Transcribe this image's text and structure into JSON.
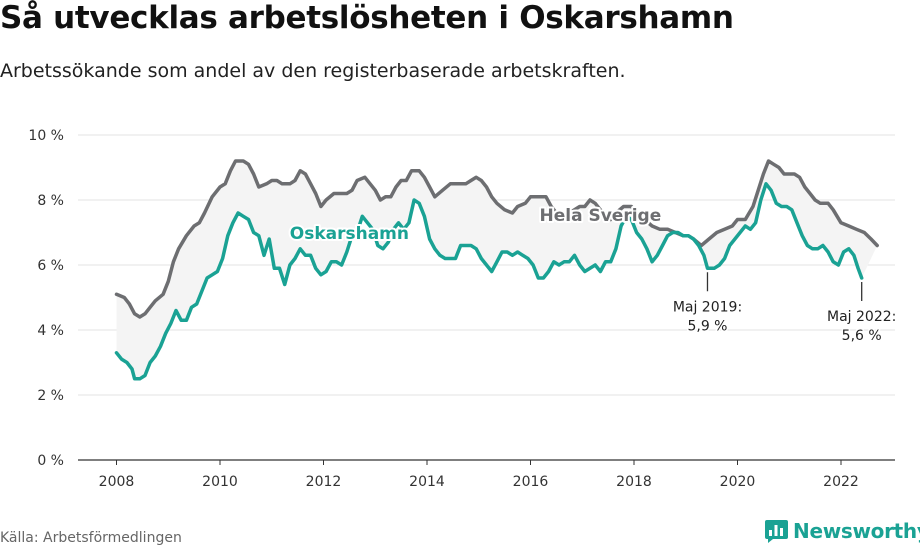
{
  "title": "Så utvecklas arbetslösheten i Oskarshamn",
  "subtitle": "Arbetssökande som andel av den registerbaserade arbetskraften.",
  "source": "Källa: Arbetsförmedlingen",
  "brand": {
    "name": "Newsworthy",
    "icon": "newsworthy-chart-logo-icon",
    "color": "#1aa294"
  },
  "colors": {
    "oskarshamn": "#1aa294",
    "sverige": "#6d6e71",
    "band": "#f4f4f4",
    "grid": "#e3e3e3",
    "axis": "#333333"
  },
  "chart_data": {
    "type": "line",
    "title": "Så utvecklas arbetslösheten i Oskarshamn",
    "subtitle": "Arbetssökande som andel av den registerbaserade arbetskraften.",
    "xlabel": "",
    "ylabel": "",
    "xlim": [
      2007.5,
      2023.0
    ],
    "ylim": [
      0,
      10
    ],
    "y_ticks": [
      0,
      2,
      4,
      6,
      8,
      10
    ],
    "y_tick_labels": [
      "0 %",
      "2 %",
      "4 %",
      "6 %",
      "8 %",
      "10 %"
    ],
    "x_ticks": [
      2008,
      2010,
      2012,
      2014,
      2016,
      2018,
      2020,
      2022
    ],
    "x_tick_labels": [
      "2008",
      "2010",
      "2012",
      "2014",
      "2016",
      "2018",
      "2020",
      "2022"
    ],
    "grid": "horizontal",
    "legend": "inline labels",
    "series": [
      {
        "name": "Hela Sverige",
        "points": [
          [
            2008.0,
            5.1
          ],
          [
            2008.15,
            5.0
          ],
          [
            2008.25,
            4.8
          ],
          [
            2008.35,
            4.5
          ],
          [
            2008.45,
            4.4
          ],
          [
            2008.55,
            4.5
          ],
          [
            2008.65,
            4.7
          ],
          [
            2008.75,
            4.9
          ],
          [
            2008.9,
            5.1
          ],
          [
            2009.0,
            5.5
          ],
          [
            2009.1,
            6.1
          ],
          [
            2009.2,
            6.5
          ],
          [
            2009.35,
            6.9
          ],
          [
            2009.5,
            7.2
          ],
          [
            2009.6,
            7.3
          ],
          [
            2009.7,
            7.6
          ],
          [
            2009.85,
            8.1
          ],
          [
            2010.0,
            8.4
          ],
          [
            2010.1,
            8.5
          ],
          [
            2010.2,
            8.9
          ],
          [
            2010.3,
            9.2
          ],
          [
            2010.45,
            9.2
          ],
          [
            2010.55,
            9.1
          ],
          [
            2010.65,
            8.8
          ],
          [
            2010.75,
            8.4
          ],
          [
            2010.9,
            8.5
          ],
          [
            2011.0,
            8.6
          ],
          [
            2011.1,
            8.6
          ],
          [
            2011.2,
            8.5
          ],
          [
            2011.35,
            8.5
          ],
          [
            2011.45,
            8.6
          ],
          [
            2011.55,
            8.9
          ],
          [
            2011.65,
            8.8
          ],
          [
            2011.75,
            8.5
          ],
          [
            2011.85,
            8.2
          ],
          [
            2011.95,
            7.8
          ],
          [
            2012.05,
            8.0
          ],
          [
            2012.2,
            8.2
          ],
          [
            2012.35,
            8.2
          ],
          [
            2012.45,
            8.2
          ],
          [
            2012.55,
            8.3
          ],
          [
            2012.65,
            8.6
          ],
          [
            2012.8,
            8.7
          ],
          [
            2012.9,
            8.5
          ],
          [
            2013.0,
            8.3
          ],
          [
            2013.1,
            8.0
          ],
          [
            2013.2,
            8.1
          ],
          [
            2013.3,
            8.1
          ],
          [
            2013.4,
            8.4
          ],
          [
            2013.5,
            8.6
          ],
          [
            2013.6,
            8.6
          ],
          [
            2013.7,
            8.9
          ],
          [
            2013.85,
            8.9
          ],
          [
            2013.95,
            8.7
          ],
          [
            2014.05,
            8.4
          ],
          [
            2014.15,
            8.1
          ],
          [
            2014.3,
            8.3
          ],
          [
            2014.45,
            8.5
          ],
          [
            2014.6,
            8.5
          ],
          [
            2014.75,
            8.5
          ],
          [
            2014.85,
            8.6
          ],
          [
            2014.95,
            8.7
          ],
          [
            2015.05,
            8.6
          ],
          [
            2015.15,
            8.4
          ],
          [
            2015.25,
            8.1
          ],
          [
            2015.35,
            7.9
          ],
          [
            2015.5,
            7.7
          ],
          [
            2015.65,
            7.6
          ],
          [
            2015.75,
            7.8
          ],
          [
            2015.9,
            7.9
          ],
          [
            2016.0,
            8.1
          ],
          [
            2016.15,
            8.1
          ],
          [
            2016.3,
            8.1
          ],
          [
            2016.4,
            7.8
          ],
          [
            2016.5,
            7.6
          ],
          [
            2016.6,
            7.5
          ],
          [
            2016.75,
            7.6
          ],
          [
            2016.85,
            7.7
          ],
          [
            2016.95,
            7.8
          ],
          [
            2017.05,
            7.8
          ],
          [
            2017.15,
            8.0
          ],
          [
            2017.25,
            7.9
          ],
          [
            2017.35,
            7.7
          ],
          [
            2017.45,
            7.5
          ],
          [
            2017.55,
            7.4
          ],
          [
            2017.65,
            7.6
          ],
          [
            2017.8,
            7.8
          ],
          [
            2017.95,
            7.8
          ],
          [
            2018.05,
            7.6
          ],
          [
            2018.2,
            7.4
          ],
          [
            2018.35,
            7.2
          ],
          [
            2018.5,
            7.1
          ],
          [
            2018.65,
            7.1
          ],
          [
            2018.8,
            7.0
          ],
          [
            2018.95,
            6.9
          ],
          [
            2019.05,
            6.9
          ],
          [
            2019.15,
            6.8
          ],
          [
            2019.3,
            6.6
          ],
          [
            2019.45,
            6.8
          ],
          [
            2019.6,
            7.0
          ],
          [
            2019.75,
            7.1
          ],
          [
            2019.9,
            7.2
          ],
          [
            2020.0,
            7.4
          ],
          [
            2020.15,
            7.4
          ],
          [
            2020.3,
            7.8
          ],
          [
            2020.4,
            8.3
          ],
          [
            2020.5,
            8.8
          ],
          [
            2020.6,
            9.2
          ],
          [
            2020.7,
            9.1
          ],
          [
            2020.8,
            9.0
          ],
          [
            2020.9,
            8.8
          ],
          [
            2021.0,
            8.8
          ],
          [
            2021.1,
            8.8
          ],
          [
            2021.2,
            8.7
          ],
          [
            2021.3,
            8.4
          ],
          [
            2021.4,
            8.2
          ],
          [
            2021.5,
            8.0
          ],
          [
            2021.6,
            7.9
          ],
          [
            2021.75,
            7.9
          ],
          [
            2021.85,
            7.7
          ],
          [
            2022.0,
            7.3
          ],
          [
            2022.15,
            7.2
          ],
          [
            2022.3,
            7.1
          ],
          [
            2022.45,
            7.0
          ],
          [
            2022.58,
            6.8
          ],
          [
            2022.7,
            6.6
          ]
        ]
      },
      {
        "name": "Oskarshamn",
        "points": [
          [
            2008.0,
            3.3
          ],
          [
            2008.1,
            3.1
          ],
          [
            2008.2,
            3.0
          ],
          [
            2008.3,
            2.8
          ],
          [
            2008.35,
            2.5
          ],
          [
            2008.45,
            2.5
          ],
          [
            2008.55,
            2.6
          ],
          [
            2008.65,
            3.0
          ],
          [
            2008.75,
            3.2
          ],
          [
            2008.85,
            3.5
          ],
          [
            2008.95,
            3.9
          ],
          [
            2009.05,
            4.2
          ],
          [
            2009.15,
            4.6
          ],
          [
            2009.25,
            4.3
          ],
          [
            2009.35,
            4.3
          ],
          [
            2009.45,
            4.7
          ],
          [
            2009.55,
            4.8
          ],
          [
            2009.65,
            5.2
          ],
          [
            2009.75,
            5.6
          ],
          [
            2009.85,
            5.7
          ],
          [
            2009.95,
            5.8
          ],
          [
            2010.05,
            6.2
          ],
          [
            2010.15,
            6.9
          ],
          [
            2010.25,
            7.3
          ],
          [
            2010.35,
            7.6
          ],
          [
            2010.45,
            7.5
          ],
          [
            2010.55,
            7.4
          ],
          [
            2010.65,
            7.0
          ],
          [
            2010.75,
            6.9
          ],
          [
            2010.85,
            6.3
          ],
          [
            2010.95,
            6.8
          ],
          [
            2011.05,
            5.9
          ],
          [
            2011.15,
            5.9
          ],
          [
            2011.25,
            5.4
          ],
          [
            2011.35,
            6.0
          ],
          [
            2011.45,
            6.2
          ],
          [
            2011.55,
            6.5
          ],
          [
            2011.65,
            6.3
          ],
          [
            2011.75,
            6.3
          ],
          [
            2011.85,
            5.9
          ],
          [
            2011.95,
            5.7
          ],
          [
            2012.05,
            5.8
          ],
          [
            2012.15,
            6.1
          ],
          [
            2012.25,
            6.1
          ],
          [
            2012.35,
            6.0
          ],
          [
            2012.45,
            6.4
          ],
          [
            2012.55,
            6.9
          ],
          [
            2012.65,
            7.0
          ],
          [
            2012.75,
            7.5
          ],
          [
            2012.85,
            7.3
          ],
          [
            2012.95,
            7.1
          ],
          [
            2013.05,
            6.6
          ],
          [
            2013.15,
            6.5
          ],
          [
            2013.25,
            6.7
          ],
          [
            2013.35,
            7.1
          ],
          [
            2013.45,
            7.3
          ],
          [
            2013.55,
            7.1
          ],
          [
            2013.65,
            7.3
          ],
          [
            2013.75,
            8.0
          ],
          [
            2013.85,
            7.9
          ],
          [
            2013.95,
            7.5
          ],
          [
            2014.05,
            6.8
          ],
          [
            2014.15,
            6.5
          ],
          [
            2014.25,
            6.3
          ],
          [
            2014.35,
            6.2
          ],
          [
            2014.45,
            6.2
          ],
          [
            2014.55,
            6.2
          ],
          [
            2014.65,
            6.6
          ],
          [
            2014.75,
            6.6
          ],
          [
            2014.85,
            6.6
          ],
          [
            2014.95,
            6.5
          ],
          [
            2015.05,
            6.2
          ],
          [
            2015.15,
            6.0
          ],
          [
            2015.25,
            5.8
          ],
          [
            2015.35,
            6.1
          ],
          [
            2015.45,
            6.4
          ],
          [
            2015.55,
            6.4
          ],
          [
            2015.65,
            6.3
          ],
          [
            2015.75,
            6.4
          ],
          [
            2015.85,
            6.3
          ],
          [
            2015.95,
            6.2
          ],
          [
            2016.05,
            6.0
          ],
          [
            2016.15,
            5.6
          ],
          [
            2016.25,
            5.6
          ],
          [
            2016.35,
            5.8
          ],
          [
            2016.45,
            6.1
          ],
          [
            2016.55,
            6.0
          ],
          [
            2016.65,
            6.1
          ],
          [
            2016.75,
            6.1
          ],
          [
            2016.85,
            6.3
          ],
          [
            2016.95,
            6.0
          ],
          [
            2017.05,
            5.8
          ],
          [
            2017.15,
            5.9
          ],
          [
            2017.25,
            6.0
          ],
          [
            2017.35,
            5.8
          ],
          [
            2017.45,
            6.1
          ],
          [
            2017.55,
            6.1
          ],
          [
            2017.65,
            6.5
          ],
          [
            2017.75,
            7.2
          ],
          [
            2017.85,
            7.5
          ],
          [
            2017.95,
            7.4
          ],
          [
            2018.05,
            7.0
          ],
          [
            2018.15,
            6.8
          ],
          [
            2018.25,
            6.5
          ],
          [
            2018.35,
            6.1
          ],
          [
            2018.45,
            6.3
          ],
          [
            2018.55,
            6.6
          ],
          [
            2018.65,
            6.9
          ],
          [
            2018.75,
            7.0
          ],
          [
            2018.85,
            7.0
          ],
          [
            2018.95,
            6.9
          ],
          [
            2019.05,
            6.9
          ],
          [
            2019.15,
            6.8
          ],
          [
            2019.25,
            6.6
          ],
          [
            2019.35,
            6.3
          ],
          [
            2019.42,
            5.9
          ],
          [
            2019.55,
            5.9
          ],
          [
            2019.65,
            6.0
          ],
          [
            2019.75,
            6.2
          ],
          [
            2019.85,
            6.6
          ],
          [
            2019.95,
            6.8
          ],
          [
            2020.05,
            7.0
          ],
          [
            2020.15,
            7.2
          ],
          [
            2020.25,
            7.1
          ],
          [
            2020.35,
            7.3
          ],
          [
            2020.45,
            8.0
          ],
          [
            2020.55,
            8.5
          ],
          [
            2020.65,
            8.3
          ],
          [
            2020.75,
            7.9
          ],
          [
            2020.85,
            7.8
          ],
          [
            2020.95,
            7.8
          ],
          [
            2021.05,
            7.7
          ],
          [
            2021.15,
            7.3
          ],
          [
            2021.25,
            6.9
          ],
          [
            2021.35,
            6.6
          ],
          [
            2021.45,
            6.5
          ],
          [
            2021.55,
            6.5
          ],
          [
            2021.65,
            6.6
          ],
          [
            2021.75,
            6.4
          ],
          [
            2021.85,
            6.1
          ],
          [
            2021.95,
            6.0
          ],
          [
            2022.05,
            6.4
          ],
          [
            2022.15,
            6.5
          ],
          [
            2022.25,
            6.3
          ],
          [
            2022.33,
            5.9
          ],
          [
            2022.4,
            5.6
          ]
        ]
      }
    ],
    "annotations": [
      {
        "x": 2019.42,
        "y": 5.9,
        "line1": "Maj 2019:",
        "line2": "5,9 %"
      },
      {
        "x": 2022.4,
        "y": 5.6,
        "line1": "Maj 2022:",
        "line2": "5,6 %"
      }
    ]
  }
}
